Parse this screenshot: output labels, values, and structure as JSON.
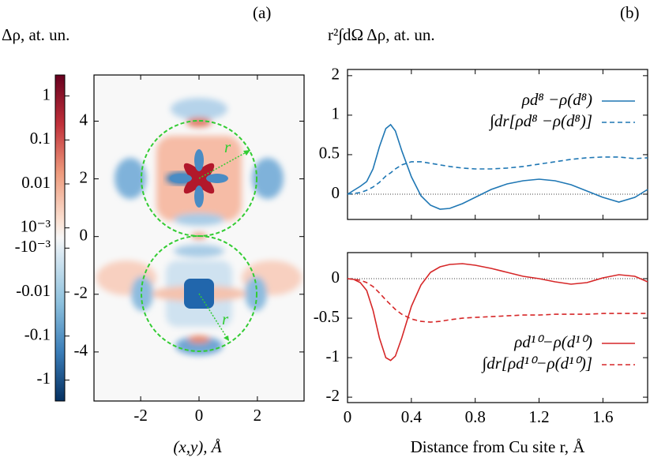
{
  "chart_data": [
    {
      "type": "heatmap",
      "title": "Δρ, at. un.",
      "panel_label": "(a)",
      "xlabel": "(x,y), Å",
      "xlim": [
        -3.6,
        3.6
      ],
      "ylim": [
        -5.7,
        5.6
      ],
      "xticks": [
        -2,
        0,
        2
      ],
      "yticks": [
        -4,
        -2,
        0,
        2,
        4
      ],
      "colorbar": {
        "scale": "symlog",
        "linthresh": 0.001,
        "linscale": 0.23,
        "base": 10,
        "lim": [
          -3,
          3
        ],
        "ticks": [
          1,
          0.1,
          0.01,
          {
            "value": 0.001,
            "label": "10⁻³"
          },
          {
            "value": -0.001,
            "label": "-10⁻³"
          },
          -0.01,
          -0.1,
          -1
        ]
      },
      "annotations": [
        "r",
        "r"
      ]
    },
    {
      "type": "line",
      "title": "r²∫dΩ Δρ, at. un.",
      "panel_label": "(b)",
      "legend": "upper right",
      "yscale": "symlog",
      "linthresh": 1,
      "linscale": 1,
      "base": 4,
      "xlim": [
        0,
        1.88
      ],
      "ylim": [
        -0.32,
        2.23
      ],
      "xticks": [
        0,
        0.4,
        0.8,
        1.2,
        1.6
      ],
      "yticks": [
        0,
        0.5,
        1,
        2
      ],
      "x": [
        0,
        0.04,
        0.08,
        0.12,
        0.16,
        0.2,
        0.24,
        0.27,
        0.3,
        0.34,
        0.4,
        0.46,
        0.52,
        0.58,
        0.64,
        0.72,
        0.8,
        0.9,
        1.0,
        1.1,
        1.2,
        1.3,
        1.4,
        1.5,
        1.6,
        1.7,
        1.8,
        1.88
      ],
      "series": [
        {
          "name": "ρd⁸ −ρ(d⁸)",
          "color": "#1f77b4",
          "linestyle": "solid",
          "values": [
            0,
            0.05,
            0.1,
            0.16,
            0.32,
            0.6,
            0.83,
            0.88,
            0.8,
            0.55,
            0.22,
            -0.02,
            -0.14,
            -0.19,
            -0.18,
            -0.12,
            -0.04,
            0.06,
            0.13,
            0.17,
            0.19,
            0.17,
            0.12,
            0.04,
            -0.04,
            -0.1,
            -0.04,
            0.06
          ]
        },
        {
          "name": "∫dr[ρd⁸ −ρ(d⁸)]",
          "color": "#1f77b4",
          "linestyle": "dashed",
          "values": [
            0,
            0.01,
            0.02,
            0.05,
            0.09,
            0.15,
            0.23,
            0.27,
            0.32,
            0.37,
            0.41,
            0.41,
            0.39,
            0.37,
            0.35,
            0.33,
            0.32,
            0.32,
            0.33,
            0.35,
            0.38,
            0.41,
            0.44,
            0.46,
            0.47,
            0.47,
            0.45,
            0.46
          ]
        }
      ]
    },
    {
      "type": "line",
      "xlabel": "Distance from Cu site r, Å",
      "legend": "lower right",
      "yscale": "symlog",
      "linthresh": 1,
      "linscale": 1,
      "base": 4,
      "xlim": [
        0,
        1.88
      ],
      "ylim": [
        -2.2,
        0.33
      ],
      "xticks": [
        0,
        0.4,
        0.8,
        1.2,
        1.6
      ],
      "yticks": [
        0,
        -0.5,
        -1,
        -2
      ],
      "x": [
        0,
        0.04,
        0.08,
        0.12,
        0.16,
        0.2,
        0.24,
        0.27,
        0.3,
        0.34,
        0.4,
        0.46,
        0.52,
        0.58,
        0.64,
        0.72,
        0.8,
        0.9,
        1.0,
        1.1,
        1.2,
        1.3,
        1.4,
        1.5,
        1.6,
        1.7,
        1.8,
        1.88
      ],
      "series": [
        {
          "name": "ρd¹⁰−ρ(d¹⁰)",
          "color": "#d62728",
          "linestyle": "solid",
          "values": [
            0,
            -0.01,
            -0.05,
            -0.15,
            -0.4,
            -0.75,
            -1.0,
            -1.05,
            -0.98,
            -0.75,
            -0.35,
            -0.08,
            0.08,
            0.15,
            0.18,
            0.19,
            0.17,
            0.13,
            0.08,
            0.03,
            0,
            -0.04,
            -0.07,
            -0.05,
            0.01,
            0.05,
            0.03,
            -0.04
          ]
        },
        {
          "name": "∫dr[ρd¹⁰−ρ(d¹⁰)]",
          "color": "#d62728",
          "linestyle": "dashed",
          "values": [
            0,
            -0.01,
            -0.02,
            -0.05,
            -0.1,
            -0.18,
            -0.27,
            -0.33,
            -0.39,
            -0.45,
            -0.51,
            -0.54,
            -0.55,
            -0.54,
            -0.52,
            -0.5,
            -0.49,
            -0.48,
            -0.47,
            -0.46,
            -0.46,
            -0.45,
            -0.45,
            -0.45,
            -0.44,
            -0.44,
            -0.44,
            -0.44
          ]
        }
      ]
    }
  ]
}
